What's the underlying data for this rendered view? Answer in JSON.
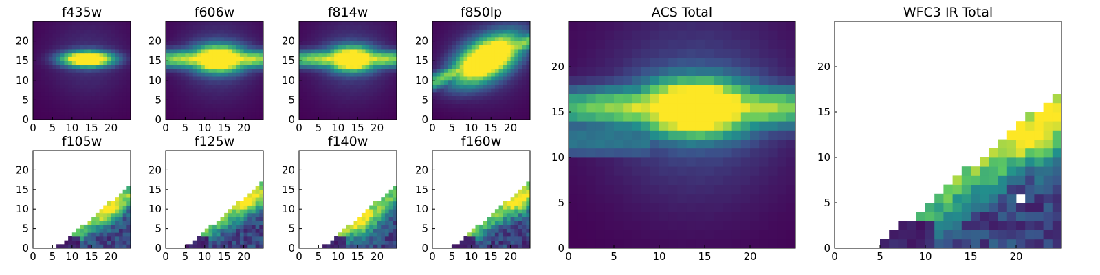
{
  "figure": {
    "colormap": [
      "#440154",
      "#3b528b",
      "#21918c",
      "#5ec962",
      "#fde725"
    ],
    "background": "#ffffff",
    "grid_size": 25
  },
  "chart_data": [
    {
      "id": "f435w",
      "type": "heatmap",
      "title": "f435w",
      "xticks": [
        0,
        5,
        10,
        15,
        20
      ],
      "yticks": [
        0,
        5,
        10,
        15,
        20
      ],
      "xlim": [
        0,
        25
      ],
      "ylim": [
        0,
        25
      ],
      "coverage": "full",
      "model": {
        "kind": "galaxy",
        "cx": 14,
        "cy": 15.5,
        "ax": 4.5,
        "ay": 1.3,
        "bw": 0,
        "bwx": 12,
        "bwy": 1.5,
        "halo": 0.15
      }
    },
    {
      "id": "f606w",
      "type": "heatmap",
      "title": "f606w",
      "xticks": [
        0,
        5,
        10,
        15,
        20
      ],
      "yticks": [
        0,
        5,
        10,
        15,
        20
      ],
      "xlim": [
        0,
        25
      ],
      "ylim": [
        0,
        25
      ],
      "coverage": "full",
      "model": {
        "kind": "galaxy",
        "cx": 13.5,
        "cy": 15.5,
        "ax": 5,
        "ay": 2.2,
        "bw": 0.9,
        "bwx": 20,
        "bwy": 1.6,
        "halo": 0.2
      }
    },
    {
      "id": "f814w",
      "type": "heatmap",
      "title": "f814w",
      "xticks": [
        0,
        5,
        10,
        15,
        20
      ],
      "yticks": [
        0,
        5,
        10,
        15,
        20
      ],
      "xlim": [
        0,
        25
      ],
      "ylim": [
        0,
        25
      ],
      "coverage": "full",
      "model": {
        "kind": "galaxy",
        "cx": 13.5,
        "cy": 15.5,
        "ax": 4.5,
        "ay": 2.0,
        "bw": 0.85,
        "bwx": 20,
        "bwy": 1.5,
        "halo": 0.2
      }
    },
    {
      "id": "f850lp",
      "type": "heatmap",
      "title": "f850lp",
      "xticks": [
        0,
        5,
        10,
        15,
        20
      ],
      "yticks": [
        0,
        5,
        10,
        15,
        20
      ],
      "xlim": [
        0,
        25
      ],
      "ylim": [
        0,
        25
      ],
      "coverage": "full",
      "model": {
        "kind": "tilted",
        "cx": 14,
        "cy": 15.5,
        "ax": 6,
        "ay": 3.5,
        "bw": 0.85,
        "bwx": 20,
        "bwy": 1.6,
        "slope": 0.42,
        "halo": 0.2
      }
    },
    {
      "id": "f105w",
      "type": "heatmap",
      "title": "f105w",
      "xticks": [
        0,
        5,
        10,
        15,
        20
      ],
      "yticks": [
        0,
        5,
        10,
        15,
        20
      ],
      "xlim": [
        0,
        25
      ],
      "ylim": [
        0,
        25
      ],
      "coverage": "diagonal",
      "model": {
        "kind": "ir",
        "x0": 6,
        "slope": 0.85,
        "seed": 3,
        "peak_x": 18,
        "peak_y": 10
      }
    },
    {
      "id": "f125w",
      "type": "heatmap",
      "title": "f125w",
      "xticks": [
        0,
        5,
        10,
        15,
        20
      ],
      "yticks": [
        0,
        5,
        10,
        15,
        20
      ],
      "xlim": [
        0,
        25
      ],
      "ylim": [
        0,
        25
      ],
      "coverage": "diagonal",
      "model": {
        "kind": "ir",
        "x0": 5,
        "slope": 0.85,
        "seed": 7,
        "peak_x": 21,
        "peak_y": 13
      }
    },
    {
      "id": "f140w",
      "type": "heatmap",
      "title": "f140w",
      "xticks": [
        0,
        5,
        10,
        15,
        20
      ],
      "yticks": [
        0,
        5,
        10,
        15,
        20
      ],
      "xlim": [
        0,
        25
      ],
      "ylim": [
        0,
        25
      ],
      "coverage": "diagonal",
      "model": {
        "kind": "ir",
        "x0": 6,
        "slope": 0.85,
        "seed": 11,
        "peak_x": 16,
        "peak_y": 6
      }
    },
    {
      "id": "f160w",
      "type": "heatmap",
      "title": "f160w",
      "xticks": [
        0,
        5,
        10,
        15,
        20
      ],
      "yticks": [
        0,
        5,
        10,
        15,
        20
      ],
      "xlim": [
        0,
        25
      ],
      "ylim": [
        0,
        25
      ],
      "coverage": "diagonal",
      "model": {
        "kind": "ir",
        "x0": 5,
        "slope": 0.85,
        "seed": 13,
        "peak_x": 22,
        "peak_y": 12
      }
    },
    {
      "id": "acs-total",
      "type": "heatmap",
      "title": "ACS Total",
      "xticks": [
        0,
        5,
        10,
        15,
        20
      ],
      "yticks": [
        0,
        5,
        10,
        15,
        20
      ],
      "xlim": [
        0,
        25
      ],
      "ylim": [
        0,
        25
      ],
      "coverage": "full",
      "model": {
        "kind": "galaxy",
        "cx": 14,
        "cy": 15.5,
        "ax": 4.5,
        "ay": 2.0,
        "bw": 0.8,
        "bwx": 20,
        "bwy": 1.5,
        "halo": 0.25,
        "tail": true
      }
    },
    {
      "id": "wfc3-ir-total",
      "type": "heatmap",
      "title": "WFC3 IR Total",
      "xticks": [
        0,
        5,
        10,
        15,
        20
      ],
      "yticks": [
        0,
        5,
        10,
        15,
        20
      ],
      "xlim": [
        0,
        25
      ],
      "ylim": [
        0,
        25
      ],
      "coverage": "diagonal",
      "model": {
        "kind": "ir",
        "x0": 4.5,
        "slope": 0.85,
        "seed": 21,
        "peak_x": 22,
        "peak_y": 13,
        "hole": [
          20,
          5
        ]
      }
    }
  ]
}
